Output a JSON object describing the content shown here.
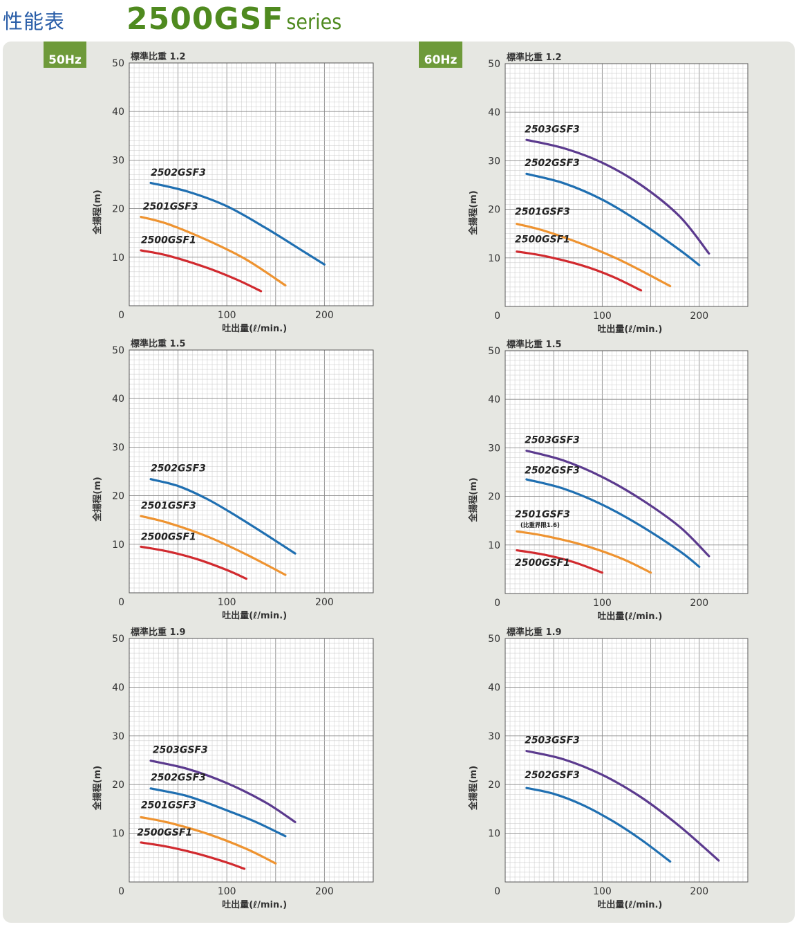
{
  "page": {
    "heading": "性能表",
    "title_model": "2500GSF",
    "title_series": "series"
  },
  "tabs": [
    {
      "label": "50Hz"
    },
    {
      "label": "60Hz"
    }
  ],
  "colors": {
    "2500GSF1": "#d12a2f",
    "2501GSF3": "#ee9330",
    "2502GSF3": "#1f6fb1",
    "2503GSF3": "#5b3a8e",
    "title_green": "#4f8a1f",
    "heading_blue": "#2a5ea8",
    "tab_green": "#6e9a3a",
    "panel_grey": "#e6e7e2"
  },
  "chart_data": [
    {
      "type": "line",
      "frequency": "50Hz",
      "title": "標準比重 1.2",
      "xlabel": "吐出量(ℓ/min.)",
      "ylabel": "全揚程(m)",
      "xlim": [
        0,
        250
      ],
      "ylim": [
        0,
        50
      ],
      "xticks": [
        100,
        200
      ],
      "yticks": [
        0,
        10,
        20,
        30,
        40,
        50
      ],
      "grid": true,
      "series": [
        {
          "name": "2502GSF3",
          "color": "2502GSF3",
          "x": [
            22,
            60,
            100,
            140,
            180,
            200
          ],
          "y": [
            25.3,
            23.5,
            20.5,
            16.0,
            11.0,
            8.5
          ]
        },
        {
          "name": "2501GSF3",
          "color": "2501GSF3",
          "x": [
            12,
            40,
            80,
            120,
            160
          ],
          "y": [
            18.3,
            16.8,
            13.5,
            9.5,
            4.2
          ]
        },
        {
          "name": "2500GSF1",
          "color": "2500GSF1",
          "x": [
            12,
            40,
            80,
            110,
            135
          ],
          "y": [
            11.4,
            10.3,
            7.8,
            5.4,
            3.0
          ]
        }
      ]
    },
    {
      "type": "line",
      "frequency": "60Hz",
      "title": "標準比重 1.2",
      "xlabel": "吐出量(ℓ/min.)",
      "ylabel": "全揚程(m)",
      "xlim": [
        0,
        250
      ],
      "ylim": [
        0,
        50
      ],
      "xticks": [
        100,
        200
      ],
      "yticks": [
        0,
        10,
        20,
        30,
        40,
        50
      ],
      "grid": true,
      "series": [
        {
          "name": "2503GSF3",
          "color": "2503GSF3",
          "x": [
            22,
            60,
            100,
            140,
            180,
            210
          ],
          "y": [
            34.3,
            32.6,
            29.6,
            25.0,
            18.5,
            10.9
          ]
        },
        {
          "name": "2502GSF3",
          "color": "2502GSF3",
          "x": [
            22,
            60,
            100,
            140,
            180,
            200
          ],
          "y": [
            27.3,
            25.4,
            22.0,
            17.2,
            11.6,
            8.5
          ]
        },
        {
          "name": "2501GSF3",
          "color": "2501GSF3",
          "x": [
            12,
            40,
            80,
            120,
            170
          ],
          "y": [
            17.0,
            15.6,
            12.8,
            9.4,
            4.2
          ]
        },
        {
          "name": "2500GSF1",
          "color": "2500GSF1",
          "x": [
            12,
            40,
            80,
            110,
            140
          ],
          "y": [
            11.3,
            10.4,
            8.4,
            6.2,
            3.3
          ]
        }
      ]
    },
    {
      "type": "line",
      "frequency": "50Hz",
      "title": "標準比重 1.5",
      "xlabel": "吐出量(ℓ/min.)",
      "ylabel": "全揚程(m)",
      "xlim": [
        0,
        250
      ],
      "ylim": [
        0,
        50
      ],
      "xticks": [
        100,
        200
      ],
      "yticks": [
        0,
        10,
        20,
        30,
        40,
        50
      ],
      "grid": true,
      "series": [
        {
          "name": "2502GSF3",
          "color": "2502GSF3",
          "x": [
            22,
            50,
            80,
            110,
            140,
            170
          ],
          "y": [
            23.4,
            22.0,
            19.3,
            15.8,
            12.0,
            8.1
          ]
        },
        {
          "name": "2501GSF3",
          "color": "2501GSF3",
          "x": [
            12,
            40,
            80,
            120,
            160
          ],
          "y": [
            15.8,
            14.4,
            11.6,
            7.9,
            3.7
          ]
        },
        {
          "name": "2500GSF1",
          "color": "2500GSF1",
          "x": [
            12,
            40,
            70,
            100,
            120
          ],
          "y": [
            9.5,
            8.5,
            6.9,
            4.7,
            2.9
          ]
        }
      ]
    },
    {
      "type": "line",
      "frequency": "60Hz",
      "title": "標準比重 1.5",
      "xlabel": "吐出量(ℓ/min.)",
      "ylabel": "全揚程(m)",
      "xlim": [
        0,
        250
      ],
      "ylim": [
        0,
        50
      ],
      "xticks": [
        100,
        200
      ],
      "yticks": [
        0,
        10,
        20,
        30,
        40,
        50
      ],
      "grid": true,
      "series": [
        {
          "name": "2503GSF3",
          "color": "2503GSF3",
          "x": [
            22,
            60,
            100,
            140,
            180,
            210
          ],
          "y": [
            29.4,
            27.4,
            24.0,
            19.4,
            13.7,
            7.7
          ]
        },
        {
          "name": "2502GSF3",
          "color": "2502GSF3",
          "x": [
            22,
            60,
            100,
            140,
            180,
            200
          ],
          "y": [
            23.5,
            21.6,
            18.3,
            13.9,
            8.7,
            5.5
          ]
        },
        {
          "name": "2501GSF3",
          "note": "(比重界限1.6)",
          "color": "2501GSF3",
          "x": [
            12,
            40,
            80,
            120,
            150
          ],
          "y": [
            12.8,
            11.9,
            10.0,
            7.2,
            4.3
          ]
        },
        {
          "name": "2500GSF1",
          "color": "2500GSF1",
          "x": [
            12,
            40,
            70,
            100
          ],
          "y": [
            8.9,
            8.0,
            6.5,
            4.3
          ]
        }
      ]
    },
    {
      "type": "line",
      "frequency": "50Hz",
      "title": "標準比重 1.9",
      "xlabel": "吐出量(ℓ/min.)",
      "ylabel": "全揚程(m)",
      "xlim": [
        0,
        250
      ],
      "ylim": [
        0,
        50
      ],
      "xticks": [
        100,
        200
      ],
      "yticks": [
        0,
        10,
        20,
        30,
        40,
        50
      ],
      "grid": true,
      "series": [
        {
          "name": "2503GSF3",
          "color": "2503GSF3",
          "x": [
            22,
            60,
            100,
            140,
            170
          ],
          "y": [
            24.9,
            23.2,
            20.3,
            16.3,
            12.3
          ]
        },
        {
          "name": "2502GSF3",
          "color": "2502GSF3",
          "x": [
            22,
            60,
            100,
            130,
            160
          ],
          "y": [
            19.2,
            17.6,
            14.7,
            12.3,
            9.4
          ]
        },
        {
          "name": "2501GSF3",
          "color": "2501GSF3",
          "x": [
            12,
            40,
            80,
            120,
            150
          ],
          "y": [
            13.3,
            12.2,
            9.9,
            6.8,
            3.8
          ]
        },
        {
          "name": "2500GSF1",
          "color": "2500GSF1",
          "x": [
            12,
            40,
            70,
            100,
            118
          ],
          "y": [
            8.1,
            7.2,
            5.8,
            4.0,
            2.7
          ]
        }
      ]
    },
    {
      "type": "line",
      "frequency": "60Hz",
      "title": "標準比重 1.9",
      "xlabel": "吐出量(ℓ/min.)",
      "ylabel": "全揚程(m)",
      "xlim": [
        0,
        250
      ],
      "ylim": [
        0,
        50
      ],
      "xticks": [
        100,
        200
      ],
      "yticks": [
        0,
        10,
        20,
        30,
        40,
        50
      ],
      "grid": true,
      "series": [
        {
          "name": "2503GSF3",
          "color": "2503GSF3",
          "x": [
            22,
            60,
            100,
            140,
            180,
            220
          ],
          "y": [
            26.9,
            25.2,
            22.0,
            17.4,
            11.4,
            4.4
          ]
        },
        {
          "name": "2502GSF3",
          "color": "2502GSF3",
          "x": [
            22,
            50,
            80,
            110,
            140,
            170
          ],
          "y": [
            19.3,
            18.1,
            15.8,
            12.6,
            8.7,
            4.2
          ]
        }
      ]
    }
  ]
}
